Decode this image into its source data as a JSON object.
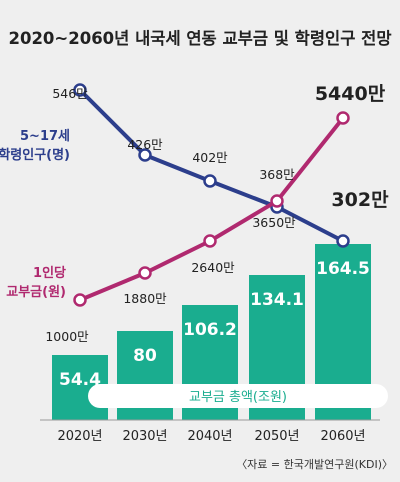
{
  "chart_data": {
    "type": "bar+line",
    "title": "2020~2060년 내국세 연동 교부금 및 학령인구 전망",
    "source": "〈자료 = 한국개발연구원(KDI)〉",
    "categories": [
      "2020년",
      "2030년",
      "2040년",
      "2050년",
      "2060년"
    ],
    "bar_series": {
      "name": "교부금 총액(조원)",
      "values": [
        54.4,
        80,
        106.2,
        134.1,
        164.5
      ],
      "labels": [
        "54.4",
        "80",
        "106.2",
        "134.1",
        "164.5"
      ],
      "color": "#1aad8f"
    },
    "line_series": [
      {
        "name": "5~17세\n학령인구(명)",
        "values": [
          546,
          426,
          402,
          368,
          302
        ],
        "labels": [
          "546만",
          "426만",
          "402만",
          "368만",
          "302만"
        ],
        "color": "#2c3e8c"
      },
      {
        "name": "1인당\n교부금(원)",
        "values": [
          1000,
          1880,
          2640,
          3650,
          5440
        ],
        "labels": [
          "1000만",
          "1880만",
          "2640만",
          "3650만",
          "5440만"
        ],
        "color": "#b0296f"
      }
    ]
  }
}
